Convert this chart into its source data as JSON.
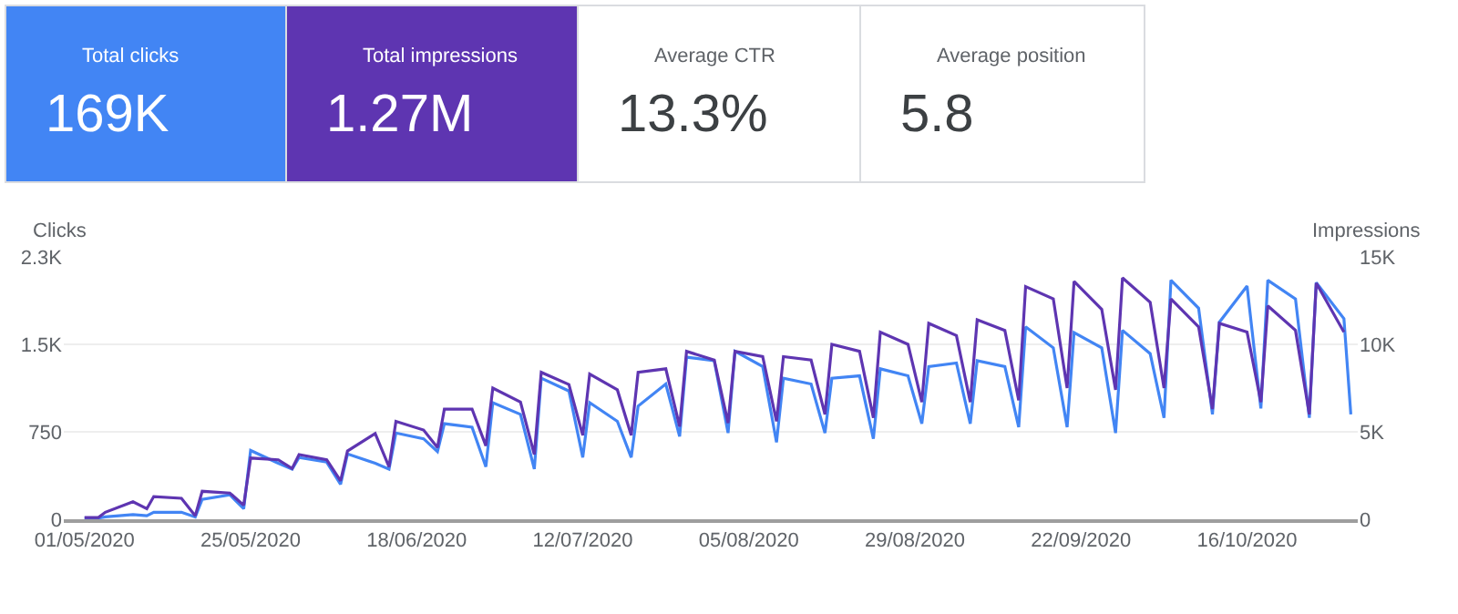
{
  "chart_data": [
    {
      "type": "other",
      "categories": [
        "Total clicks",
        "Total impressions",
        "Average CTR",
        "Average position"
      ],
      "value_labels": [
        "169K",
        "1.27M",
        "13.3%",
        "5.8"
      ],
      "colors": [
        "#4285f4",
        "#5e35b1",
        "#ffffff",
        "#ffffff"
      ]
    },
    {
      "type": "line",
      "ylabel": "Clicks",
      "y2label": "Impressions",
      "x": [
        "2020-05-01",
        "2020-05-03",
        "2020-05-04",
        "2020-05-08",
        "2020-05-10",
        "2020-05-11",
        "2020-05-15",
        "2020-05-17",
        "2020-05-18",
        "2020-05-22",
        "2020-05-24",
        "2020-05-25",
        "2020-05-29",
        "2020-05-31",
        "2020-06-01",
        "2020-06-05",
        "2020-06-07",
        "2020-06-08",
        "2020-06-12",
        "2020-06-14",
        "2020-06-15",
        "2020-06-19",
        "2020-06-21",
        "2020-06-22",
        "2020-06-26",
        "2020-06-28",
        "2020-06-29",
        "2020-07-03",
        "2020-07-05",
        "2020-07-06",
        "2020-07-10",
        "2020-07-12",
        "2020-07-13",
        "2020-07-17",
        "2020-07-19",
        "2020-07-20",
        "2020-07-24",
        "2020-07-26",
        "2020-07-27",
        "2020-07-31",
        "2020-08-02",
        "2020-08-03",
        "2020-08-07",
        "2020-08-09",
        "2020-08-10",
        "2020-08-14",
        "2020-08-16",
        "2020-08-17",
        "2020-08-21",
        "2020-08-23",
        "2020-08-24",
        "2020-08-28",
        "2020-08-30",
        "2020-08-31",
        "2020-09-04",
        "2020-09-06",
        "2020-09-07",
        "2020-09-11",
        "2020-09-13",
        "2020-09-14",
        "2020-09-18",
        "2020-09-20",
        "2020-09-21",
        "2020-09-25",
        "2020-09-27",
        "2020-09-28",
        "2020-10-02",
        "2020-10-04",
        "2020-10-05",
        "2020-10-09",
        "2020-10-11",
        "2020-10-12",
        "2020-10-16",
        "2020-10-18",
        "2020-10-19",
        "2020-10-23",
        "2020-10-25",
        "2020-10-26",
        "2020-10-30",
        "2020-10-31"
      ],
      "series": [
        {
          "color": "#5e35b1",
          "axis": "y2",
          "values": [
            100,
            100,
            400,
            1000,
            600,
            1300,
            1200,
            200,
            1600,
            1500,
            800,
            3500,
            3400,
            2900,
            3700,
            3400,
            2200,
            3900,
            4900,
            3000,
            5600,
            5100,
            4100,
            6300,
            6300,
            4200,
            7500,
            6700,
            3700,
            8400,
            7700,
            4800,
            8300,
            7400,
            4800,
            8400,
            8600,
            5300,
            9600,
            9100,
            5500,
            9600,
            9300,
            5600,
            9300,
            9100,
            6000,
            10000,
            9600,
            5800,
            10700,
            10000,
            6700,
            11200,
            10500,
            6700,
            11400,
            10800,
            6800,
            13300,
            12600,
            7500,
            13600,
            12000,
            7400,
            13800,
            12400,
            7500,
            12600,
            11000,
            6300,
            11200,
            10700,
            6700,
            12200,
            10800,
            6000,
            13500,
            10700,
            null
          ]
        },
        {
          "color": "#4285f4",
          "values": [
            10,
            10,
            20,
            40,
            30,
            60,
            60,
            20,
            170,
            210,
            90,
            590,
            480,
            430,
            530,
            490,
            300,
            560,
            480,
            430,
            740,
            690,
            580,
            820,
            790,
            450,
            1000,
            900,
            430,
            1210,
            1100,
            530,
            1000,
            840,
            530,
            970,
            1160,
            710,
            1390,
            1360,
            740,
            1440,
            1310,
            660,
            1210,
            1160,
            740,
            1210,
            1230,
            690,
            1290,
            1230,
            820,
            1310,
            1340,
            820,
            1360,
            1310,
            790,
            1650,
            1470,
            790,
            1600,
            1470,
            740,
            1620,
            1420,
            870,
            2050,
            1810,
            900,
            1690,
            2000,
            950,
            2050,
            1890,
            870,
            2030,
            1720,
            900
          ]
        }
      ],
      "xlim": [
        "2020-04-28",
        "2020-11-01"
      ],
      "xticks": [
        {
          "value": "2020-05-01",
          "label": "01/05/2020"
        },
        {
          "value": "2020-05-25",
          "label": "25/05/2020"
        },
        {
          "value": "2020-06-18",
          "label": "18/06/2020"
        },
        {
          "value": "2020-07-12",
          "label": "12/07/2020"
        },
        {
          "value": "2020-08-05",
          "label": "05/08/2020"
        },
        {
          "value": "2020-08-29",
          "label": "29/08/2020"
        },
        {
          "value": "2020-09-22",
          "label": "22/09/2020"
        },
        {
          "value": "2020-10-16",
          "label": "16/10/2020"
        }
      ],
      "ylim": [
        0,
        2250
      ],
      "yticks": [
        0,
        750,
        {
          "value": 1500,
          "label": "1.5K"
        },
        {
          "value": 2250,
          "label": "2.3K"
        }
      ],
      "y2lim": [
        0,
        15000
      ],
      "y2ticks": [
        0,
        {
          "value": 5000,
          "label": "5K"
        },
        {
          "value": 10000,
          "label": "10K"
        },
        {
          "value": 15000,
          "label": "15K"
        }
      ],
      "grid": "y",
      "marker": "none",
      "line_style": "solid"
    }
  ]
}
